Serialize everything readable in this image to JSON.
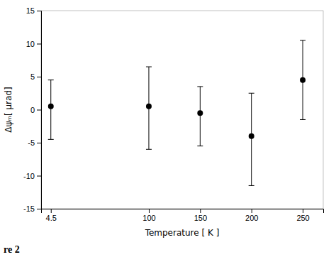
{
  "chart_data": {
    "type": "scatter",
    "xlabel": "Temperature [ K ]",
    "ylabel": "Δψₘ[ μrad]",
    "x": [
      4.5,
      100,
      150,
      200,
      250
    ],
    "values": [
      0.5,
      0.5,
      -0.5,
      -4.0,
      4.5
    ],
    "yerr_lower": [
      5.0,
      6.5,
      5.0,
      7.5,
      6.0
    ],
    "yerr_upper": [
      4.0,
      6.0,
      4.0,
      6.5,
      6.0
    ],
    "xlim": [
      -5,
      270
    ],
    "xticks": [
      4.5,
      100,
      150,
      200,
      250
    ],
    "ylim": [
      -15,
      15
    ],
    "yticks": [
      -15,
      -10,
      -5,
      0,
      5,
      10,
      15
    ],
    "color": "black",
    "marker": "circle",
    "grid": false,
    "annotations": [
      "re 2"
    ]
  }
}
